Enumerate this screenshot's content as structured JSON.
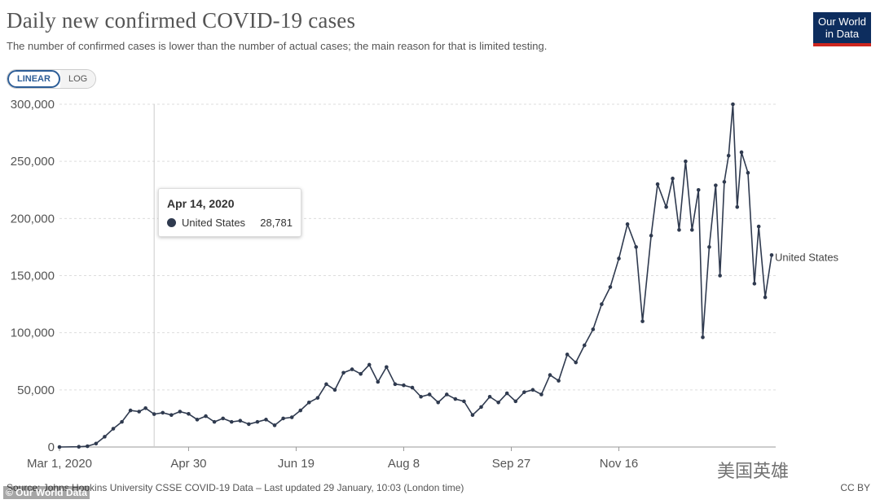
{
  "header": {
    "title": "Daily new confirmed COVID-19 cases",
    "subtitle": "The number of confirmed cases is lower than the number of actual cases; the main reason for that is limited testing.",
    "logo_line1": "Our World",
    "logo_line2": "in Data"
  },
  "controls": {
    "linear_label": "LINEAR",
    "log_label": "LOG",
    "selected": "LINEAR"
  },
  "tooltip": {
    "date": "Apr 14, 2020",
    "series": "United States",
    "value": "28,781"
  },
  "footer": {
    "source": "Source: Johns Hopkins University CSSE COVID-19 Data – Last updated 29 January, 10:03 (London time)",
    "license": "CC BY",
    "watermark_left": "© Our World Data",
    "watermark_right": "美国英雄"
  },
  "colors": {
    "line": "#2f3a4f",
    "grid": "#dddddd",
    "logo_bg": "#0d2d5e",
    "logo_accent": "#ce261e"
  },
  "chart_data": {
    "type": "line",
    "title": "Daily new confirmed COVID-19 cases",
    "ylim": [
      0,
      300000
    ],
    "y_ticks": [
      0,
      50000,
      100000,
      150000,
      200000,
      250000,
      300000
    ],
    "y_tick_labels": [
      "0",
      "50,000",
      "100,000",
      "150,000",
      "200,000",
      "250,000",
      "300,000"
    ],
    "x_tick_labels": [
      "Mar 1, 2020",
      "Apr 30",
      "Jun 19",
      "Aug 8",
      "Sep 27",
      "Nov 16"
    ],
    "x_ticks": [
      "2020-03-01",
      "2020-04-30",
      "2020-06-19",
      "2020-08-08",
      "2020-09-27",
      "2020-11-16"
    ],
    "x_range": [
      "2020-03-01",
      "2021-01-26"
    ],
    "grid": true,
    "highlight_date": "2020-04-14",
    "series": [
      {
        "name": "United States",
        "points": [
          [
            "2020-03-01",
            0
          ],
          [
            "2020-03-10",
            200
          ],
          [
            "2020-03-14",
            700
          ],
          [
            "2020-03-18",
            3000
          ],
          [
            "2020-03-22",
            9000
          ],
          [
            "2020-03-26",
            16000
          ],
          [
            "2020-03-30",
            22000
          ],
          [
            "2020-04-03",
            32000
          ],
          [
            "2020-04-07",
            31000
          ],
          [
            "2020-04-10",
            34000
          ],
          [
            "2020-04-14",
            28781
          ],
          [
            "2020-04-18",
            30000
          ],
          [
            "2020-04-22",
            28000
          ],
          [
            "2020-04-26",
            31000
          ],
          [
            "2020-04-30",
            29000
          ],
          [
            "2020-05-04",
            24000
          ],
          [
            "2020-05-08",
            27000
          ],
          [
            "2020-05-12",
            22000
          ],
          [
            "2020-05-16",
            25000
          ],
          [
            "2020-05-20",
            22000
          ],
          [
            "2020-05-24",
            23000
          ],
          [
            "2020-05-28",
            20000
          ],
          [
            "2020-06-01",
            22000
          ],
          [
            "2020-06-05",
            24000
          ],
          [
            "2020-06-09",
            19000
          ],
          [
            "2020-06-13",
            25000
          ],
          [
            "2020-06-17",
            26000
          ],
          [
            "2020-06-21",
            32000
          ],
          [
            "2020-06-25",
            39000
          ],
          [
            "2020-06-29",
            43000
          ],
          [
            "2020-07-03",
            55000
          ],
          [
            "2020-07-07",
            50000
          ],
          [
            "2020-07-11",
            65000
          ],
          [
            "2020-07-15",
            68000
          ],
          [
            "2020-07-19",
            64000
          ],
          [
            "2020-07-23",
            72000
          ],
          [
            "2020-07-27",
            57000
          ],
          [
            "2020-07-31",
            70000
          ],
          [
            "2020-08-04",
            55000
          ],
          [
            "2020-08-08",
            54000
          ],
          [
            "2020-08-12",
            52000
          ],
          [
            "2020-08-16",
            44000
          ],
          [
            "2020-08-20",
            46000
          ],
          [
            "2020-08-24",
            39000
          ],
          [
            "2020-08-28",
            46000
          ],
          [
            "2020-09-01",
            42000
          ],
          [
            "2020-09-05",
            40000
          ],
          [
            "2020-09-09",
            28000
          ],
          [
            "2020-09-13",
            35000
          ],
          [
            "2020-09-17",
            44000
          ],
          [
            "2020-09-21",
            39000
          ],
          [
            "2020-09-25",
            47000
          ],
          [
            "2020-09-29",
            40000
          ],
          [
            "2020-10-03",
            48000
          ],
          [
            "2020-10-07",
            50000
          ],
          [
            "2020-10-11",
            46000
          ],
          [
            "2020-10-15",
            63000
          ],
          [
            "2020-10-19",
            58000
          ],
          [
            "2020-10-23",
            81000
          ],
          [
            "2020-10-27",
            74000
          ],
          [
            "2020-10-31",
            89000
          ],
          [
            "2020-11-04",
            103000
          ],
          [
            "2020-11-08",
            125000
          ],
          [
            "2020-11-12",
            140000
          ],
          [
            "2020-11-16",
            165000
          ],
          [
            "2020-11-20",
            195000
          ],
          [
            "2020-11-24",
            175000
          ],
          [
            "2020-11-27",
            110000
          ],
          [
            "2020-12-01",
            185000
          ],
          [
            "2020-12-04",
            230000
          ],
          [
            "2020-12-08",
            210000
          ],
          [
            "2020-12-11",
            235000
          ],
          [
            "2020-12-14",
            190000
          ],
          [
            "2020-12-17",
            250000
          ],
          [
            "2020-12-20",
            190000
          ],
          [
            "2020-12-23",
            225000
          ],
          [
            "2020-12-25",
            96000
          ],
          [
            "2020-12-28",
            175000
          ],
          [
            "2020-12-31",
            229000
          ],
          [
            "2021-01-02",
            150000
          ],
          [
            "2021-01-04",
            232000
          ],
          [
            "2021-01-06",
            255000
          ],
          [
            "2021-01-08",
            300000
          ],
          [
            "2021-01-10",
            210000
          ],
          [
            "2021-01-12",
            258000
          ],
          [
            "2021-01-15",
            240000
          ],
          [
            "2021-01-18",
            143000
          ],
          [
            "2021-01-20",
            193000
          ],
          [
            "2021-01-23",
            131000
          ],
          [
            "2021-01-26",
            168000
          ]
        ]
      }
    ]
  }
}
